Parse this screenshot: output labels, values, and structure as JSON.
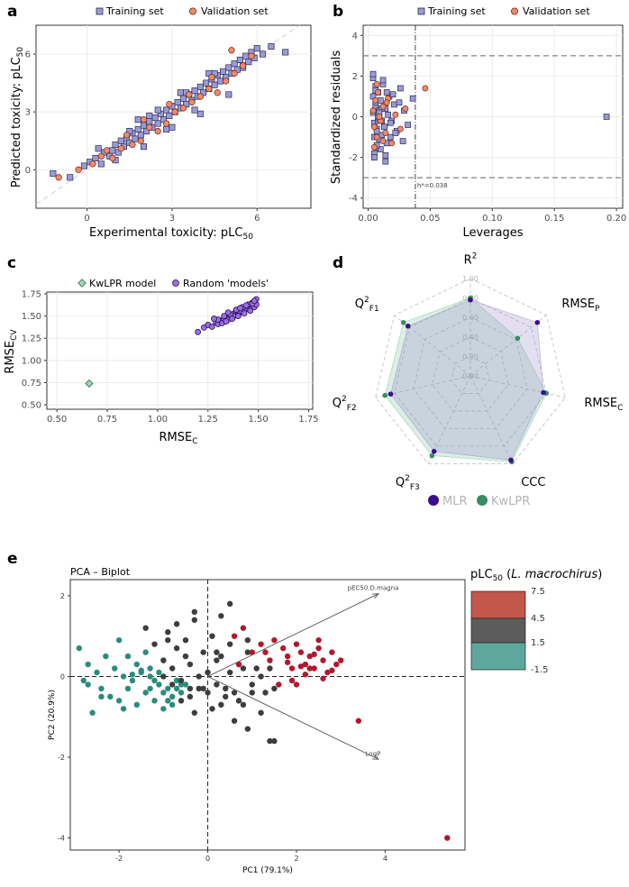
{
  "figure_labels": {
    "a": "a",
    "b": "b",
    "c": "c",
    "d": "d",
    "e": "e"
  },
  "colors": {
    "training": "#9a9ad6",
    "training_edge": "#2b2b55",
    "validation": "#f08a6a",
    "validation_edge": "#6b2a1a",
    "kwlpr": "#3a8c63",
    "mlr": "#3b0f8c",
    "random": "#9b6fe0",
    "random_edge": "#2a0e5c",
    "pca_red": "#b2182b",
    "pca_dark": "#3d3d3d",
    "pca_teal": "#2a8c7e"
  },
  "chart_data": [
    {
      "id": "a",
      "type": "scatter",
      "legend": {
        "training": "Training set",
        "validation": "Validation set"
      },
      "xlabel": "Experimental toxicity: pLC",
      "xlabel_sub": "50",
      "ylabel": "Predicted toxicity: pLC",
      "ylabel_sub": "50",
      "xlim": [
        -1.8,
        7.9
      ],
      "ylim": [
        -2.0,
        7.5
      ],
      "xticks": [
        0,
        3,
        6
      ],
      "yticks": [
        0,
        3,
        6
      ],
      "identity_line": true,
      "training_x": [
        -1.2,
        -0.6,
        -0.1,
        0.1,
        0.3,
        0.5,
        0.6,
        0.8,
        0.9,
        1.0,
        1.1,
        1.2,
        1.3,
        1.4,
        1.5,
        1.6,
        1.7,
        1.8,
        1.9,
        2.0,
        2.1,
        2.2,
        2.3,
        2.4,
        2.5,
        2.6,
        2.7,
        2.8,
        2.9,
        3.0,
        3.1,
        3.2,
        3.3,
        3.4,
        3.5,
        3.6,
        3.7,
        3.8,
        3.9,
        4.0,
        4.1,
        4.2,
        4.3,
        4.4,
        4.5,
        4.6,
        4.7,
        4.8,
        4.9,
        5.0,
        5.1,
        5.2,
        5.3,
        5.4,
        5.5,
        5.6,
        5.7,
        5.8,
        5.9,
        6.0,
        6.2,
        6.5,
        7.0,
        0.4,
        1.0,
        1.5,
        2.0,
        2.5,
        3.0,
        3.5,
        4.0,
        4.5,
        5.0,
        5.5,
        2.2,
        2.8,
        3.3,
        3.8,
        4.3,
        1.8
      ],
      "training_y": [
        -0.2,
        -0.4,
        0.2,
        0.4,
        0.6,
        0.3,
        0.9,
        0.7,
        1.0,
        1.3,
        0.9,
        1.5,
        1.2,
        1.6,
        1.4,
        1.9,
        1.6,
        2.1,
        1.8,
        2.3,
        2.0,
        2.5,
        2.2,
        2.7,
        2.4,
        2.9,
        2.6,
        3.1,
        2.8,
        3.3,
        3.0,
        3.5,
        3.2,
        3.7,
        3.4,
        3.9,
        3.6,
        4.1,
        3.8,
        4.3,
        4.0,
        4.5,
        4.2,
        4.7,
        4.4,
        4.9,
        4.6,
        5.1,
        4.8,
        5.3,
        5.0,
        5.5,
        5.2,
        5.7,
        5.4,
        5.9,
        5.6,
        6.1,
        5.8,
        6.3,
        6.0,
        6.4,
        6.1,
        1.1,
        0.5,
        2.0,
        1.2,
        3.1,
        2.2,
        4.0,
        2.9,
        5.0,
        3.9,
        5.3,
        2.8,
        2.1,
        4.0,
        3.1,
        5.0,
        2.6
      ],
      "validation_x": [
        -1.0,
        -0.3,
        0.2,
        0.5,
        0.9,
        1.2,
        1.6,
        1.9,
        2.2,
        2.5,
        2.8,
        3.1,
        3.4,
        3.7,
        4.0,
        4.3,
        4.6,
        4.9,
        5.2,
        5.5,
        5.8,
        0.7,
        1.4,
        2.0,
        2.9,
        3.6,
        4.4,
        5.1
      ],
      "validation_y": [
        -0.4,
        0.0,
        0.3,
        0.7,
        0.6,
        1.1,
        1.3,
        1.5,
        2.2,
        2.0,
        2.4,
        3.0,
        3.2,
        3.5,
        3.8,
        4.2,
        4.0,
        4.6,
        5.0,
        5.4,
        5.9,
        1.0,
        1.8,
        2.6,
        3.4,
        3.9,
        4.8,
        6.2
      ]
    },
    {
      "id": "b",
      "type": "scatter",
      "legend": {
        "training": "Training set",
        "validation": "Validation set"
      },
      "xlabel": "Leverages",
      "ylabel": "Standardized residuals",
      "xlim": [
        -0.004,
        0.205
      ],
      "ylim": [
        -4.5,
        4.5
      ],
      "xticks": [
        0.0,
        0.05,
        0.1,
        0.15,
        0.2
      ],
      "xtick_labels": [
        "0.00",
        "0.05",
        "0.10",
        "0.15",
        "0.20"
      ],
      "yticks": [
        -4,
        -2,
        0,
        2,
        4
      ],
      "h_lines": [
        3,
        -3
      ],
      "v_line": 0.038,
      "v_line_label": "h*=0.038",
      "training_x": [
        0.004,
        0.005,
        0.006,
        0.007,
        0.008,
        0.009,
        0.01,
        0.011,
        0.012,
        0.013,
        0.014,
        0.015,
        0.017,
        0.019,
        0.021,
        0.023,
        0.026,
        0.029,
        0.032,
        0.036,
        0.004,
        0.005,
        0.006,
        0.007,
        0.008,
        0.009,
        0.01,
        0.012,
        0.014,
        0.016,
        0.018,
        0.02,
        0.022,
        0.025,
        0.028,
        0.004,
        0.005,
        0.006,
        0.007,
        0.008,
        0.009,
        0.011,
        0.013,
        0.015,
        0.018,
        0.004,
        0.005,
        0.006,
        0.007,
        0.009,
        0.011,
        0.014,
        0.192
      ],
      "training_y": [
        1.9,
        -1.8,
        1.5,
        -1.5,
        1.2,
        -1.1,
        0.8,
        -0.9,
        1.6,
        -0.5,
        0.4,
        -1.3,
        1.0,
        -0.2,
        0.6,
        -0.7,
        1.4,
        0.3,
        -0.4,
        0.9,
        0.2,
        -0.3,
        0.5,
        -0.6,
        -0.2,
        0.3,
        -1.6,
        1.8,
        -1.9,
        0.1,
        -1.0,
        1.1,
        -0.8,
        0.7,
        -1.2,
        2.1,
        -2.0,
        1.3,
        -1.4,
        0.0,
        -0.1,
        0.4,
        -0.5,
        1.2,
        -0.3,
        1.0,
        -1.0,
        0.7,
        -0.7,
        0.2,
        -0.2,
        -2.2,
        0.0
      ],
      "validation_x": [
        0.004,
        0.005,
        0.006,
        0.007,
        0.008,
        0.01,
        0.012,
        0.014,
        0.016,
        0.019,
        0.022,
        0.026,
        0.03,
        0.005,
        0.007,
        0.009,
        0.012,
        0.015,
        0.046
      ],
      "validation_y": [
        0.3,
        -0.5,
        0.8,
        -1.0,
        1.2,
        -0.2,
        0.5,
        -0.8,
        0.9,
        -1.3,
        0.1,
        -0.6,
        0.4,
        -1.5,
        1.6,
        0.0,
        -1.2,
        0.7,
        1.4
      ]
    },
    {
      "id": "c",
      "type": "scatter",
      "legend": {
        "kwlpr": "KwLPR model",
        "random": "Random 'models'"
      },
      "xlabel": "RMSE",
      "xlabel_sub": "C",
      "ylabel": "RMSE",
      "ylabel_sub": "CV",
      "xlim": [
        0.45,
        1.77
      ],
      "ylim": [
        0.45,
        1.77
      ],
      "xticks": [
        0.5,
        0.75,
        1.0,
        1.25,
        1.5,
        1.75
      ],
      "xtick_labels": [
        "0.50",
        "0.75",
        "1.00",
        "1.25",
        "1.50",
        "1.75"
      ],
      "yticks": [
        0.5,
        0.75,
        1.0,
        1.25,
        1.5,
        1.75
      ],
      "ytick_labels": [
        "0.50",
        "0.75",
        "1.00",
        "1.25",
        "1.50",
        "1.75"
      ],
      "kwlpr_x": [
        0.66
      ],
      "kwlpr_y": [
        0.74
      ],
      "random_x": [
        1.2,
        1.23,
        1.25,
        1.27,
        1.29,
        1.3,
        1.31,
        1.32,
        1.33,
        1.34,
        1.35,
        1.35,
        1.36,
        1.37,
        1.38,
        1.38,
        1.39,
        1.4,
        1.4,
        1.41,
        1.42,
        1.42,
        1.43,
        1.43,
        1.44,
        1.44,
        1.45,
        1.45,
        1.46,
        1.46,
        1.46,
        1.47,
        1.47,
        1.47,
        1.48,
        1.48,
        1.48,
        1.48,
        1.49,
        1.49,
        1.3,
        1.33,
        1.36,
        1.39,
        1.42,
        1.45,
        1.28,
        1.35,
        1.41,
        1.44,
        1.47,
        1.48,
        1.46,
        1.43,
        1.4,
        1.37,
        1.34
      ],
      "random_y": [
        1.32,
        1.37,
        1.4,
        1.38,
        1.43,
        1.41,
        1.45,
        1.42,
        1.47,
        1.44,
        1.49,
        1.46,
        1.51,
        1.48,
        1.53,
        1.5,
        1.55,
        1.52,
        1.56,
        1.54,
        1.57,
        1.55,
        1.59,
        1.56,
        1.6,
        1.58,
        1.61,
        1.59,
        1.62,
        1.6,
        1.58,
        1.63,
        1.61,
        1.65,
        1.64,
        1.62,
        1.66,
        1.6,
        1.63,
        1.69,
        1.46,
        1.5,
        1.52,
        1.57,
        1.6,
        1.63,
        1.47,
        1.54,
        1.59,
        1.62,
        1.64,
        1.67,
        1.56,
        1.53,
        1.5,
        1.47,
        1.44
      ]
    },
    {
      "id": "d",
      "type": "radar",
      "axes": [
        {
          "main": "R",
          "sup": "2",
          "sub": ""
        },
        {
          "main": "RMSE",
          "sup": "",
          "sub": "P"
        },
        {
          "main": "RMSE",
          "sup": "",
          "sub": "C"
        },
        {
          "main": "CCC",
          "sup": "",
          "sub": ""
        },
        {
          "main": "Q",
          "sup": "2",
          "sub": "F3"
        },
        {
          "main": "Q",
          "sup": "2",
          "sub": "F2"
        },
        {
          "main": "Q",
          "sup": "2",
          "sub": "F1"
        }
      ],
      "grid_levels": [
        0.0,
        0.2,
        0.4,
        0.6,
        0.8,
        1.0
      ],
      "grid_labels": [
        "0.00",
        "0.20",
        "0.40",
        "0.60",
        "0.80",
        "1.00"
      ],
      "series": [
        {
          "name": "MLR",
          "values": [
            0.78,
            0.88,
            0.77,
            0.96,
            0.86,
            0.84,
            0.82
          ]
        },
        {
          "name": "KwLPR",
          "values": [
            0.8,
            0.62,
            0.8,
            0.98,
            0.91,
            0.9,
            0.88
          ]
        }
      ],
      "legend": [
        "MLR",
        "KwLPR"
      ]
    },
    {
      "id": "e",
      "type": "scatter",
      "title": "PCA – Biplot",
      "xlabel": "PC1 (79.1%)",
      "ylabel": "PC2 (20.9%)",
      "xlim": [
        -3.1,
        5.8
      ],
      "ylim": [
        -4.3,
        2.4
      ],
      "xticks": [
        -2,
        0,
        2,
        4
      ],
      "yticks": [
        -4,
        -2,
        0,
        2
      ],
      "arrows": [
        {
          "label": "pEC50.D.magna",
          "x": 3.85,
          "y": 2.05
        },
        {
          "label": "LogP",
          "x": 3.85,
          "y": -2.05
        }
      ],
      "colorbar": {
        "title": "pLC",
        "title_sub": "50",
        "title_species": "L. macrochirus",
        "breaks": [
          "7.5",
          "4.5",
          "1.5",
          "-1.5"
        ]
      },
      "red_x": [
        0.6,
        0.8,
        1.0,
        1.2,
        1.4,
        1.5,
        1.7,
        1.8,
        1.9,
        2.0,
        2.1,
        2.2,
        2.3,
        2.4,
        2.5,
        2.6,
        2.7,
        2.8,
        2.9,
        3.0,
        2.1,
        2.3,
        2.5,
        1.6,
        1.9,
        2.2,
        3.4,
        5.4,
        0.7,
        1.3,
        2.6,
        2.0,
        1.8,
        2.4,
        2.8
      ],
      "red_y": [
        1.0,
        1.2,
        0.6,
        0.8,
        0.4,
        0.9,
        0.7,
        0.5,
        0.2,
        0.8,
        0.6,
        0.3,
        0.5,
        0.2,
        0.7,
        0.4,
        0.1,
        0.6,
        0.3,
        0.4,
        0.25,
        0.2,
        0.9,
        -0.2,
        -0.1,
        0.05,
        -1.1,
        -4.0,
        0.3,
        0.6,
        -0.05,
        -0.2,
        0.35,
        0.55,
        0.15
      ],
      "dark_x": [
        -1.4,
        -1.2,
        -1.0,
        -0.9,
        -0.8,
        -0.7,
        -0.6,
        -0.5,
        -0.4,
        -0.3,
        -0.2,
        -0.1,
        0.0,
        0.1,
        0.2,
        0.3,
        0.4,
        0.5,
        0.6,
        0.7,
        0.8,
        0.9,
        1.0,
        1.1,
        1.2,
        1.3,
        1.4,
        1.5,
        -0.6,
        -0.3,
        0.0,
        0.3,
        0.6,
        0.9,
        -0.5,
        -0.2,
        0.2,
        0.5,
        0.8,
        1.2,
        -0.8,
        -0.4,
        0.1,
        0.4,
        0.7,
        1.0,
        1.5,
        -0.3,
        0.3,
        -0.7,
        0.5,
        -1.0,
        0.2,
        -0.1,
        1.4,
        -0.4,
        -0.9,
        0.9
      ],
      "dark_y": [
        1.2,
        0.8,
        0.4,
        1.1,
        0.2,
        0.7,
        -0.1,
        0.9,
        0.3,
        1.4,
        -0.3,
        0.6,
        0.1,
        1.0,
        -0.2,
        0.5,
        -0.5,
        0.8,
        -0.4,
        0.3,
        -0.7,
        0.6,
        -0.2,
        0.2,
        -0.9,
        -0.4,
        -1.6,
        -1.6,
        -0.6,
        -0.9,
        -0.4,
        -0.7,
        -1.1,
        -1.3,
        0.5,
        0.0,
        0.4,
        0.1,
        0.2,
        0.0,
        -0.2,
        -0.5,
        -0.8,
        -0.3,
        -0.6,
        -0.4,
        -0.3,
        1.6,
        1.5,
        1.3,
        1.8,
        0.0,
        0.6,
        -0.3,
        0.2,
        -0.3,
        0.9,
        0.9
      ],
      "teal_x": [
        -2.9,
        -2.8,
        -2.7,
        -2.6,
        -2.5,
        -2.4,
        -2.3,
        -2.2,
        -2.1,
        -2.0,
        -1.9,
        -1.8,
        -1.7,
        -1.6,
        -1.5,
        -1.4,
        -1.3,
        -1.2,
        -1.1,
        -1.0,
        -0.9,
        -0.8,
        -0.7,
        -0.6,
        -0.5,
        -2.0,
        -1.8,
        -1.6,
        -1.4,
        -1.2,
        -1.0,
        -0.8,
        -1.5,
        -1.3,
        -1.1,
        -2.7,
        -1.9,
        -1.7,
        -0.9,
        -0.7,
        -1.3,
        -0.6,
        -2.4
      ],
      "teal_y": [
        0.7,
        -0.1,
        0.3,
        -0.9,
        0.1,
        -0.3,
        0.5,
        -0.5,
        0.2,
        -0.6,
        0.0,
        -0.3,
        -0.1,
        -0.7,
        0.1,
        -0.4,
        0.0,
        -0.6,
        -0.2,
        -0.8,
        -0.3,
        -0.5,
        -0.1,
        -0.4,
        -0.2,
        0.9,
        0.5,
        0.3,
        0.6,
        -0.1,
        -0.4,
        -0.7,
        0.15,
        0.2,
        0.1,
        -0.2,
        -0.8,
        0.05,
        -0.6,
        -0.3,
        -0.3,
        -0.2,
        -0.5
      ]
    }
  ]
}
